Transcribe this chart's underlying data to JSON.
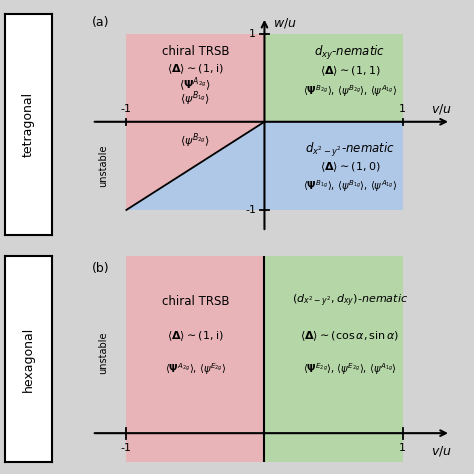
{
  "fig_width": 4.74,
  "fig_height": 4.74,
  "fig_dpi": 100,
  "bg_color": "#d3d3d3",
  "pink_color": "#e8b4b8",
  "green_color": "#b5d6a7",
  "blue_color": "#b0c8e8",
  "white": "#ffffff",
  "black": "#000000",
  "side_label_a": "tetragonal",
  "side_label_b": "hexagonal",
  "panel_a_label": "(a)",
  "panel_b_label": "(b)",
  "unstable": "unstable",
  "a_tl_l1": "chiral TRSB",
  "a_tl_l2": "$\\langle\\boldsymbol{\\Delta}\\rangle\\sim(1,\\mathrm{i})$",
  "a_tl_l3": "$\\langle\\boldsymbol{\\Psi}^{A_{2g}}\\rangle$",
  "a_tl_l4": "$\\langle\\psi^{B_{1g}}\\rangle$",
  "a_bl_l1": "$\\langle\\psi^{B_{2g}}\\rangle$",
  "a_tr_l1": "$d_{xy}$-nematic",
  "a_tr_l2": "$\\langle\\boldsymbol{\\Delta}\\rangle\\sim(1,1)$",
  "a_tr_l3": "$\\langle\\boldsymbol{\\Psi}^{B_{2g}}\\rangle$, $\\langle\\psi^{B_{2g}}\\rangle$, $\\langle\\psi^{A_{1g}}\\rangle$",
  "a_br_l1": "$d_{x^2-y^2}$-nematic",
  "a_br_l2": "$\\langle\\boldsymbol{\\Delta}\\rangle\\sim(1,0)$",
  "a_br_l3": "$\\langle\\boldsymbol{\\Psi}^{B_{1g}}\\rangle$, $\\langle\\psi^{B_{1g}}\\rangle$, $\\langle\\psi^{A_{1g}}\\rangle$",
  "a_xlabel": "$v/u$",
  "a_ylabel": "$w/u$",
  "b_left_l1": "chiral TRSB",
  "b_left_l2": "$\\langle\\boldsymbol{\\Delta}\\rangle\\sim(1,\\mathrm{i})$",
  "b_left_l3": "$\\langle\\boldsymbol{\\Psi}^{A_{2g}}\\rangle$, $\\langle\\psi^{E_{2g}}\\rangle$",
  "b_right_l1": "$(d_{x^2-y^2},d_{xy})$-nematic",
  "b_right_l2": "$\\langle\\boldsymbol{\\Delta}\\rangle\\sim(\\cos\\alpha,\\sin\\alpha)$",
  "b_right_l3": "$\\langle\\boldsymbol{\\Psi}^{E_{2g}}\\rangle$, $\\langle\\psi^{E_{2g}}\\rangle$, $\\langle\\psi^{A_{1g}}\\rangle$",
  "b_xlabel": "$v/u$"
}
